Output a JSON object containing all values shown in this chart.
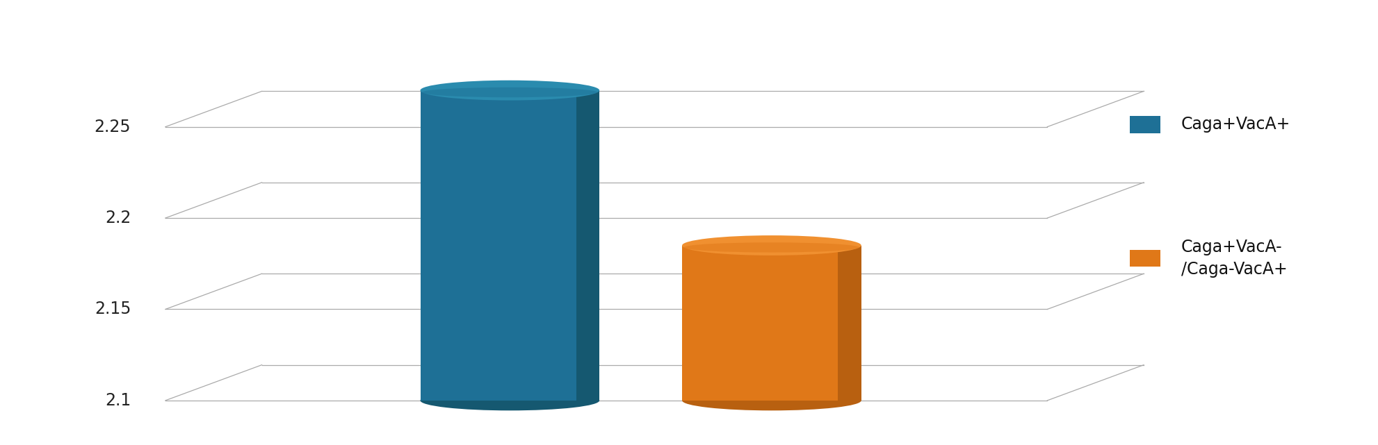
{
  "bar1_value": 2.27,
  "bar2_value": 2.185,
  "ybase": 2.1,
  "ylim_low": 2.1,
  "ylim_high": 2.3,
  "yticks": [
    2.1,
    2.15,
    2.2,
    2.25
  ],
  "bar1_color": "#1E7096",
  "bar1_dark": "#155870",
  "bar1_top": "#2A8BAE",
  "bar2_color": "#E07818",
  "bar2_dark": "#B86010",
  "bar2_top": "#F09030",
  "grid_color": "#aaaaaa",
  "legend_labels": [
    "Caga+VacA+",
    "Caga+VacA-\n/Caga-VacA+"
  ],
  "legend_colors": [
    "#1E7096",
    "#E07818"
  ],
  "bg_color": "#ffffff"
}
